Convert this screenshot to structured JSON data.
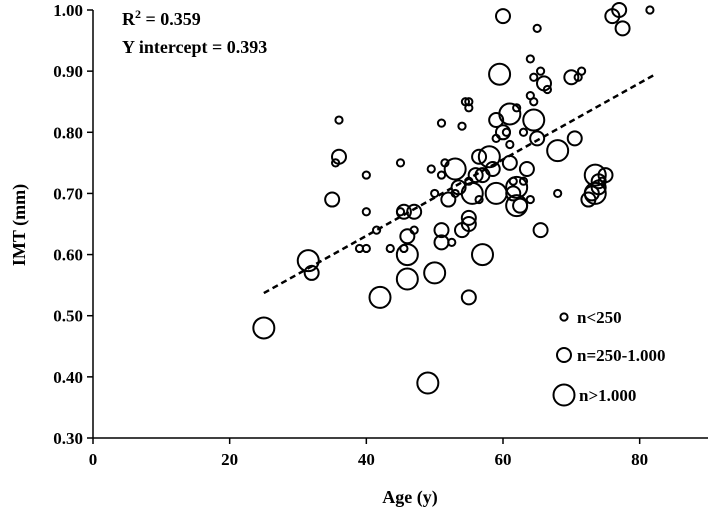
{
  "chart_data": {
    "type": "scatter",
    "xlabel": "Age (y)",
    "ylabel": "IMT (mm)",
    "xlim": [
      0,
      90
    ],
    "ylim": [
      0.3,
      1.0
    ],
    "xticks": [
      "0",
      "20",
      "40",
      "60",
      "80"
    ],
    "yticks": [
      "0.30",
      "0.40",
      "0.50",
      "0.60",
      "0.70",
      "0.80",
      "0.90",
      "1.00"
    ],
    "annotations": {
      "r2_prefix": "R",
      "r2_sup": "2",
      "r2_rest": " = 0.359",
      "intercept": "Y intercept = 0.393"
    },
    "trendline": {
      "x": [
        25,
        82
      ],
      "y": [
        0.537,
        0.893
      ],
      "style": "dashed"
    },
    "legend": {
      "position": "bottom-right",
      "entries": [
        {
          "label": "n<250",
          "size": "small"
        },
        {
          "label": "n=250-1.000",
          "size": "medium"
        },
        {
          "label": "n>1.000",
          "size": "large"
        }
      ]
    },
    "points": [
      {
        "x": 25,
        "y": 0.48,
        "size": "large"
      },
      {
        "x": 31.5,
        "y": 0.59,
        "size": "large"
      },
      {
        "x": 32,
        "y": 0.57,
        "size": "medium"
      },
      {
        "x": 35,
        "y": 0.69,
        "size": "medium"
      },
      {
        "x": 35.5,
        "y": 0.75,
        "size": "small"
      },
      {
        "x": 36,
        "y": 0.82,
        "size": "small"
      },
      {
        "x": 36,
        "y": 0.76,
        "size": "medium"
      },
      {
        "x": 39,
        "y": 0.61,
        "size": "small"
      },
      {
        "x": 40,
        "y": 0.61,
        "size": "small"
      },
      {
        "x": 40,
        "y": 0.67,
        "size": "small"
      },
      {
        "x": 40,
        "y": 0.73,
        "size": "small"
      },
      {
        "x": 41.5,
        "y": 0.64,
        "size": "small"
      },
      {
        "x": 42,
        "y": 0.53,
        "size": "large"
      },
      {
        "x": 43.5,
        "y": 0.61,
        "size": "small"
      },
      {
        "x": 45,
        "y": 0.75,
        "size": "small"
      },
      {
        "x": 45,
        "y": 0.67,
        "size": "small"
      },
      {
        "x": 45.5,
        "y": 0.61,
        "size": "small"
      },
      {
        "x": 45.5,
        "y": 0.67,
        "size": "medium"
      },
      {
        "x": 46,
        "y": 0.63,
        "size": "medium"
      },
      {
        "x": 46,
        "y": 0.6,
        "size": "large"
      },
      {
        "x": 46,
        "y": 0.56,
        "size": "large"
      },
      {
        "x": 47,
        "y": 0.67,
        "size": "medium"
      },
      {
        "x": 47,
        "y": 0.64,
        "size": "small"
      },
      {
        "x": 49,
        "y": 0.39,
        "size": "large"
      },
      {
        "x": 49.5,
        "y": 0.74,
        "size": "small"
      },
      {
        "x": 50,
        "y": 0.57,
        "size": "large"
      },
      {
        "x": 50,
        "y": 0.7,
        "size": "small"
      },
      {
        "x": 51,
        "y": 0.64,
        "size": "medium"
      },
      {
        "x": 51,
        "y": 0.62,
        "size": "medium"
      },
      {
        "x": 51,
        "y": 0.73,
        "size": "small"
      },
      {
        "x": 51.5,
        "y": 0.75,
        "size": "small"
      },
      {
        "x": 51,
        "y": 0.815,
        "size": "small"
      },
      {
        "x": 52,
        "y": 0.69,
        "size": "medium"
      },
      {
        "x": 52.5,
        "y": 0.62,
        "size": "small"
      },
      {
        "x": 53,
        "y": 0.7,
        "size": "small"
      },
      {
        "x": 53,
        "y": 0.74,
        "size": "large"
      },
      {
        "x": 53.5,
        "y": 0.71,
        "size": "medium"
      },
      {
        "x": 54,
        "y": 0.81,
        "size": "small"
      },
      {
        "x": 54,
        "y": 0.64,
        "size": "medium"
      },
      {
        "x": 54.5,
        "y": 0.85,
        "size": "small"
      },
      {
        "x": 55,
        "y": 0.85,
        "size": "small"
      },
      {
        "x": 55,
        "y": 0.84,
        "size": "small"
      },
      {
        "x": 55,
        "y": 0.66,
        "size": "medium"
      },
      {
        "x": 55,
        "y": 0.65,
        "size": "medium"
      },
      {
        "x": 55,
        "y": 0.53,
        "size": "medium"
      },
      {
        "x": 55,
        "y": 0.72,
        "size": "small"
      },
      {
        "x": 55.5,
        "y": 0.7,
        "size": "large"
      },
      {
        "x": 56,
        "y": 0.73,
        "size": "medium"
      },
      {
        "x": 56.5,
        "y": 0.76,
        "size": "medium"
      },
      {
        "x": 56.5,
        "y": 0.69,
        "size": "small"
      },
      {
        "x": 57,
        "y": 0.6,
        "size": "large"
      },
      {
        "x": 57,
        "y": 0.73,
        "size": "medium"
      },
      {
        "x": 58,
        "y": 0.76,
        "size": "large"
      },
      {
        "x": 58.5,
        "y": 0.74,
        "size": "medium"
      },
      {
        "x": 59,
        "y": 0.7,
        "size": "large"
      },
      {
        "x": 59,
        "y": 0.79,
        "size": "small"
      },
      {
        "x": 59,
        "y": 0.82,
        "size": "medium"
      },
      {
        "x": 59.5,
        "y": 0.895,
        "size": "large"
      },
      {
        "x": 60,
        "y": 0.99,
        "size": "medium"
      },
      {
        "x": 60,
        "y": 0.8,
        "size": "medium"
      },
      {
        "x": 60.5,
        "y": 0.8,
        "size": "small"
      },
      {
        "x": 61,
        "y": 0.83,
        "size": "large"
      },
      {
        "x": 61,
        "y": 0.75,
        "size": "medium"
      },
      {
        "x": 61,
        "y": 0.78,
        "size": "small"
      },
      {
        "x": 61.5,
        "y": 0.72,
        "size": "small"
      },
      {
        "x": 61.5,
        "y": 0.7,
        "size": "medium"
      },
      {
        "x": 62,
        "y": 0.84,
        "size": "small"
      },
      {
        "x": 62,
        "y": 0.68,
        "size": "large"
      },
      {
        "x": 62,
        "y": 0.71,
        "size": "large"
      },
      {
        "x": 62.5,
        "y": 0.68,
        "size": "medium"
      },
      {
        "x": 63,
        "y": 0.72,
        "size": "small"
      },
      {
        "x": 63,
        "y": 0.8,
        "size": "small"
      },
      {
        "x": 63.5,
        "y": 0.74,
        "size": "medium"
      },
      {
        "x": 64,
        "y": 0.92,
        "size": "small"
      },
      {
        "x": 64,
        "y": 0.86,
        "size": "small"
      },
      {
        "x": 64,
        "y": 0.69,
        "size": "small"
      },
      {
        "x": 64.5,
        "y": 0.89,
        "size": "small"
      },
      {
        "x": 64.5,
        "y": 0.85,
        "size": "small"
      },
      {
        "x": 64.5,
        "y": 0.82,
        "size": "large"
      },
      {
        "x": 65,
        "y": 0.97,
        "size": "small"
      },
      {
        "x": 65,
        "y": 0.79,
        "size": "medium"
      },
      {
        "x": 65.5,
        "y": 0.9,
        "size": "small"
      },
      {
        "x": 66,
        "y": 0.88,
        "size": "medium"
      },
      {
        "x": 65.5,
        "y": 0.64,
        "size": "medium"
      },
      {
        "x": 66.5,
        "y": 0.87,
        "size": "small"
      },
      {
        "x": 68,
        "y": 0.77,
        "size": "large"
      },
      {
        "x": 68,
        "y": 0.7,
        "size": "small"
      },
      {
        "x": 70,
        "y": 0.89,
        "size": "medium"
      },
      {
        "x": 70.5,
        "y": 0.79,
        "size": "medium"
      },
      {
        "x": 71,
        "y": 0.89,
        "size": "small"
      },
      {
        "x": 71.5,
        "y": 0.9,
        "size": "small"
      },
      {
        "x": 72.5,
        "y": 0.69,
        "size": "medium"
      },
      {
        "x": 73,
        "y": 0.7,
        "size": "medium"
      },
      {
        "x": 73.5,
        "y": 0.73,
        "size": "large"
      },
      {
        "x": 73.5,
        "y": 0.7,
        "size": "large"
      },
      {
        "x": 74,
        "y": 0.71,
        "size": "medium"
      },
      {
        "x": 74,
        "y": 0.72,
        "size": "medium"
      },
      {
        "x": 74.5,
        "y": 0.72,
        "size": "small"
      },
      {
        "x": 75,
        "y": 0.73,
        "size": "medium"
      },
      {
        "x": 76,
        "y": 0.99,
        "size": "medium"
      },
      {
        "x": 77,
        "y": 1.0,
        "size": "medium"
      },
      {
        "x": 77.5,
        "y": 0.97,
        "size": "medium"
      },
      {
        "x": 81.5,
        "y": 1.0,
        "size": "small"
      }
    ]
  }
}
